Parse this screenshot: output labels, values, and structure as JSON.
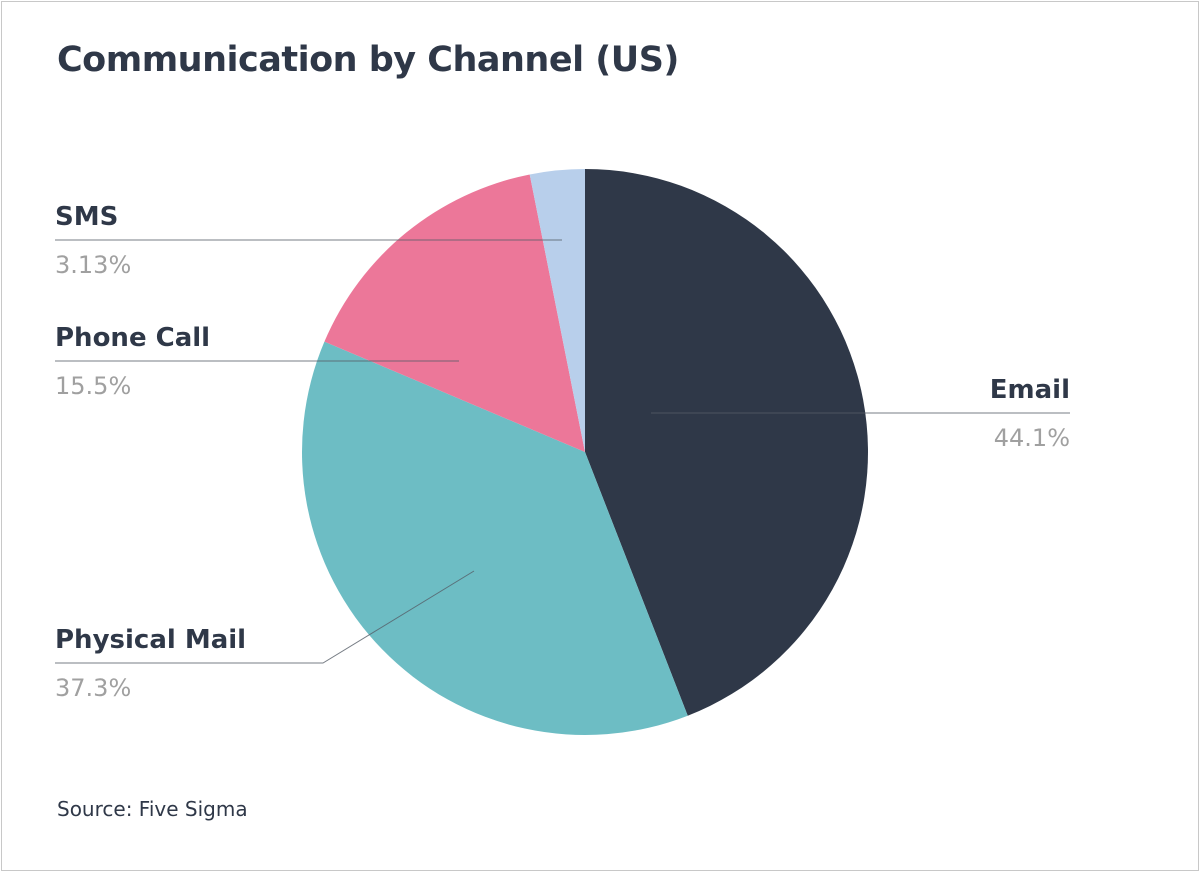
{
  "chart_data": {
    "type": "pie",
    "title": "Communication by Channel (US)",
    "start_angle": "12 o'clock",
    "direction": "clockwise",
    "slices": [
      {
        "label": "Email",
        "value": 44.1,
        "value_label": "44.1%",
        "color": "#2f3848"
      },
      {
        "label": "Physical Mail",
        "value": 37.3,
        "value_label": "37.3%",
        "color": "#6dbdc4"
      },
      {
        "label": "Phone Call",
        "value": 15.5,
        "value_label": "15.5%",
        "color": "#ec7799"
      },
      {
        "label": "SMS",
        "value": 3.13,
        "value_label": "3.13%",
        "color": "#b8cfeb"
      }
    ],
    "source": "Source: Five Sigma"
  }
}
